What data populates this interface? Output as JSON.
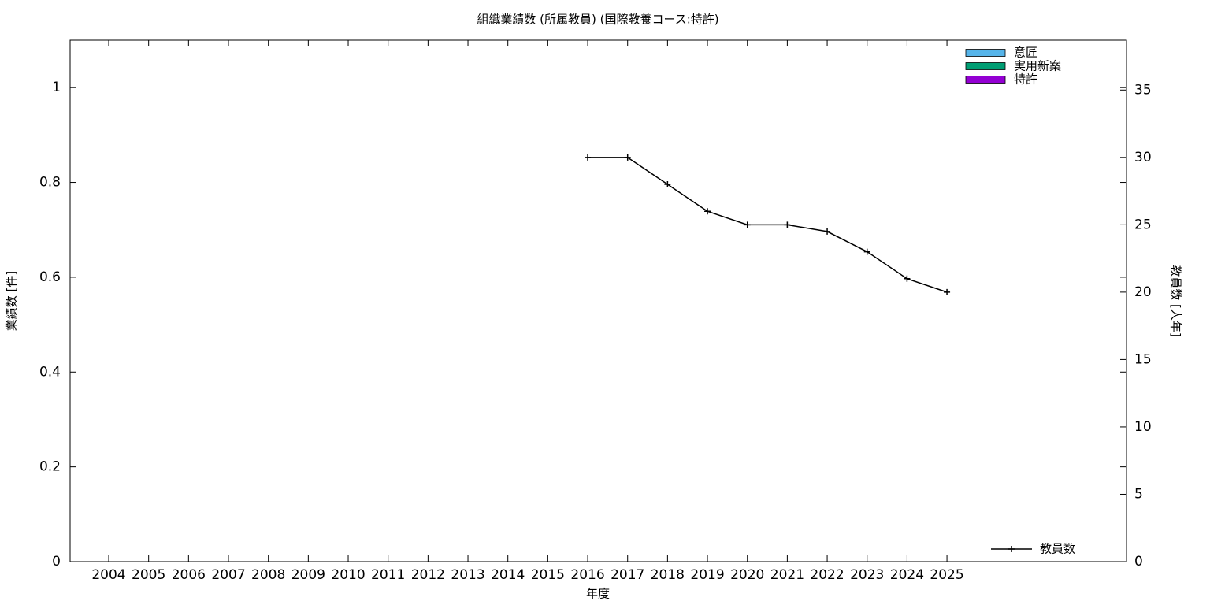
{
  "chart_data": {
    "type": "bar",
    "title": "組織業績数 (所属教員) (国際教養コース:特許)",
    "xlabel": "年度",
    "ylabel": "業績数 [件]",
    "y2label": "教員数 [人年]",
    "categories": [
      "2004",
      "2005",
      "2006",
      "2007",
      "2008",
      "2009",
      "2010",
      "2011",
      "2012",
      "2013",
      "2014",
      "2015",
      "2016",
      "2017",
      "2018",
      "2019",
      "2020",
      "2021",
      "2022",
      "2023",
      "2024",
      "2025"
    ],
    "series": [
      {
        "name": "意匠",
        "color": "#56b4e9",
        "type": "bar",
        "values": [
          0,
          0,
          0,
          0,
          0,
          0,
          0,
          0,
          0,
          0,
          0,
          0,
          0,
          0,
          0,
          0,
          0,
          0,
          0,
          0,
          0,
          0
        ]
      },
      {
        "name": "実用新案",
        "color": "#009e73",
        "type": "bar",
        "values": [
          0,
          0,
          0,
          0,
          0,
          0,
          0,
          0,
          0,
          0,
          0,
          0,
          0,
          0,
          0,
          0,
          0,
          0,
          0,
          0,
          0,
          0
        ]
      },
      {
        "name": "特許",
        "color": "#9400d3",
        "type": "bar",
        "values": [
          0,
          0,
          0,
          0,
          0,
          0,
          0,
          0,
          0,
          0,
          0,
          0,
          0,
          0,
          0,
          0,
          0,
          0,
          0,
          0,
          0,
          0
        ]
      },
      {
        "name": "教員数",
        "color": "#000000",
        "type": "line",
        "axis": "y2",
        "values": [
          null,
          null,
          null,
          null,
          null,
          null,
          null,
          null,
          null,
          null,
          null,
          null,
          30,
          30,
          28,
          26,
          25,
          25,
          24.5,
          23,
          21,
          20
        ]
      }
    ],
    "ylim": [
      0,
      1.1
    ],
    "yticks": [
      0,
      0.2,
      0.4,
      0.6,
      0.8,
      1
    ],
    "y2lim": [
      0,
      38.7
    ],
    "y2ticks": [
      0,
      5,
      10,
      15,
      20,
      25,
      30,
      35
    ]
  }
}
